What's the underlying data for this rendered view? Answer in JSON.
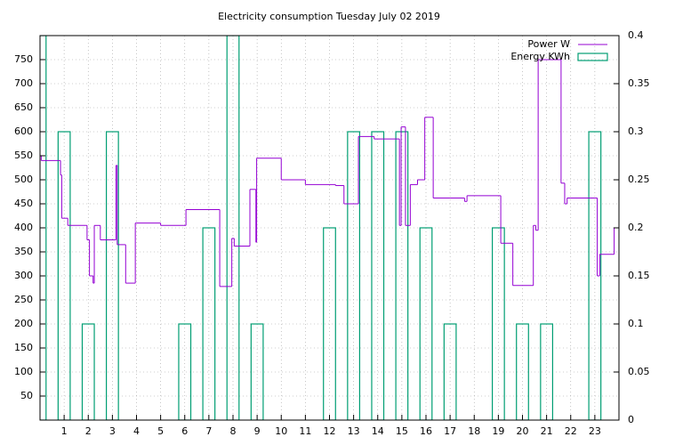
{
  "chart_data": {
    "type": "steps-and-boxes",
    "title": "Electricity consumption Tuesday July 02 2019",
    "xlim": [
      0,
      24
    ],
    "xticks": [
      1,
      2,
      3,
      4,
      5,
      6,
      7,
      8,
      9,
      10,
      11,
      12,
      13,
      14,
      15,
      16,
      17,
      18,
      19,
      20,
      21,
      22,
      23
    ],
    "ylim": [
      0,
      800
    ],
    "yticks": [
      50,
      100,
      150,
      200,
      250,
      300,
      350,
      400,
      450,
      500,
      550,
      600,
      650,
      700,
      750
    ],
    "y2lim": [
      0,
      0.4
    ],
    "y2ticks": [
      0,
      0.05,
      0.1,
      0.15,
      0.2,
      0.25,
      0.3,
      0.35,
      0.4
    ],
    "grid": true,
    "legend": "top-right",
    "series": [
      {
        "name": "Power W",
        "color": "#9400d3",
        "style": "steps",
        "x": [
          0,
          0.05,
          0.85,
          0.9,
          1.15,
          1.9,
          1.95,
          2.05,
          2.2,
          2.25,
          2.5,
          3.1,
          3.15,
          3.2,
          3.5,
          3.55,
          3.95,
          5.0,
          5.95,
          6.05,
          7.45,
          7.95,
          8.05,
          8.7,
          8.95,
          8.98,
          10.0,
          11.0,
          12.25,
          12.6,
          13.2,
          13.85,
          14.9,
          14.97,
          15.15,
          15.35,
          15.65,
          15.95,
          16.3,
          17.6,
          17.7,
          19.1,
          19.6,
          20.45,
          20.55,
          20.65,
          21.6,
          21.75,
          21.85,
          23.1,
          23.2,
          23.8
        ],
        "values": [
          550,
          540,
          510,
          420,
          405,
          405,
          375,
          300,
          285,
          405,
          375,
          375,
          530,
          365,
          365,
          285,
          410,
          405,
          405,
          438,
          278,
          378,
          362,
          480,
          370,
          545,
          500,
          490,
          488,
          450,
          590,
          585,
          405,
          610,
          405,
          490,
          500,
          630,
          462,
          455,
          467,
          368,
          280,
          405,
          395,
          750,
          493,
          450,
          462,
          300,
          345,
          400
        ]
      },
      {
        "name": "Energy KWh",
        "color": "#009e73",
        "style": "boxes",
        "axis": "y2",
        "x": [
          0,
          1,
          2,
          3,
          4,
          5,
          6,
          7,
          8,
          9,
          10,
          11,
          12,
          13,
          14,
          15,
          16,
          17,
          18,
          19,
          20,
          21,
          22,
          23
        ],
        "values": [
          0.4,
          0.3,
          0.1,
          0.3,
          0,
          0,
          0.1,
          0.2,
          0.4,
          0.1,
          0,
          0,
          0.2,
          0.3,
          0.3,
          0.3,
          0.2,
          0.1,
          0,
          0.2,
          0.1,
          0.1,
          0,
          0.3
        ]
      }
    ]
  }
}
